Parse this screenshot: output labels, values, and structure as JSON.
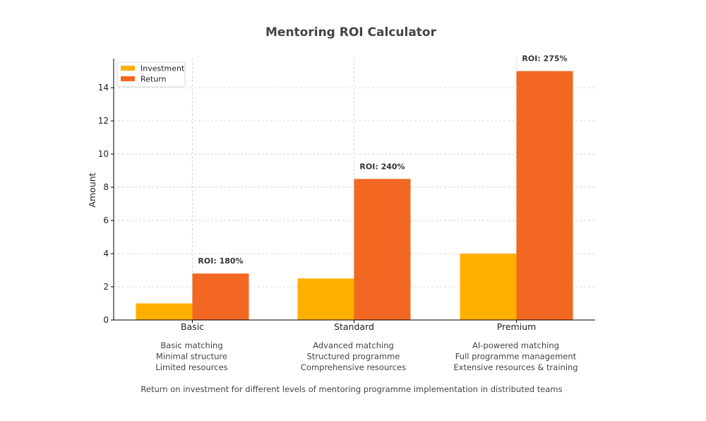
{
  "chart_data": {
    "type": "bar",
    "title": "Mentoring ROI Calculator",
    "subtitle": "Return on investment for different levels of mentoring programme implementation in distributed teams",
    "ylabel": "Amount",
    "xlabel": "",
    "ylim": [
      0,
      15.75
    ],
    "yticks": [
      0,
      2,
      4,
      6,
      8,
      10,
      12,
      14
    ],
    "categories": [
      "Basic",
      "Standard",
      "Premium"
    ],
    "series": [
      {
        "name": "Investment",
        "color": "#FFAF00",
        "values": [
          1,
          2.5,
          4
        ]
      },
      {
        "name": "Return",
        "color": "#F26722",
        "values": [
          2.8,
          8.5,
          15
        ]
      }
    ],
    "roi_labels": [
      "ROI: 180%",
      "ROI: 240%",
      "ROI: 275%"
    ],
    "descriptions": [
      [
        "Basic matching",
        "Minimal structure",
        "Limited resources"
      ],
      [
        "Advanced matching",
        "Structured programme",
        "Comprehensive resources"
      ],
      [
        "AI-powered matching",
        "Full programme management",
        "Extensive resources & training"
      ]
    ],
    "grid": true,
    "legend_position": "top-left"
  }
}
